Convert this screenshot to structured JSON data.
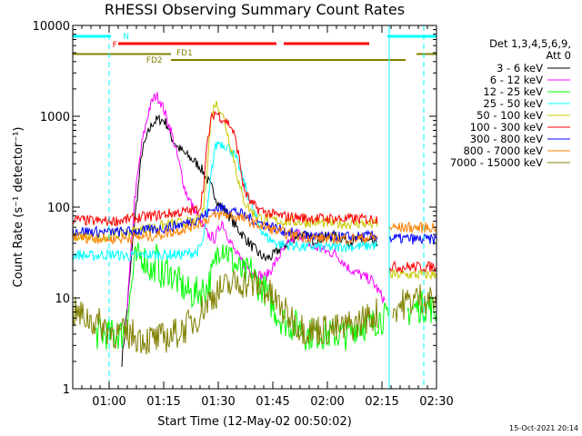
{
  "chart_data": {
    "type": "line",
    "title": "RHESSI Observing Summary Count Rates",
    "xlabel": "Start Time (12-May-02 00:50:02)",
    "ylabel": "Count Rate (s⁻¹ detector⁻¹)",
    "y_scale": "log",
    "ylim": [
      1,
      10000
    ],
    "xlim_minutes_after_start": [
      0,
      100
    ],
    "grid": false,
    "legend_placement": "right",
    "y_ticks": [
      "1",
      "10",
      "100",
      "1000",
      "10000"
    ],
    "x_ticks": [
      "01:00",
      "01:15",
      "01:30",
      "01:45",
      "02:00",
      "02:15",
      "02:30"
    ],
    "x_tick_minutes": [
      10,
      25,
      40,
      55,
      70,
      85,
      100
    ],
    "legend_header": [
      "Det 1,3,4,5,6,9,",
      "Att 0"
    ],
    "series": [
      {
        "name": "3 - 6 keV",
        "color": "#000000",
        "x": [
          0,
          10,
          12,
          13.5,
          15,
          17,
          19,
          21,
          22,
          23,
          24,
          25,
          26,
          27,
          29,
          31,
          33,
          35,
          37,
          39,
          40,
          41,
          43,
          45,
          47,
          49,
          51,
          53,
          55,
          57,
          60,
          62,
          64,
          66,
          68,
          70,
          72,
          74,
          76,
          78,
          80,
          82,
          84,
          86,
          87,
          88,
          89
        ],
        "y": [
          null,
          null,
          null,
          2,
          8,
          70,
          400,
          700,
          850,
          900,
          920,
          900,
          800,
          600,
          450,
          380,
          330,
          280,
          200,
          140,
          110,
          100,
          80,
          60,
          48,
          38,
          31,
          27,
          29,
          35,
          43,
          50,
          48,
          44,
          45,
          47,
          48,
          46,
          42,
          44,
          43,
          40,
          42,
          null,
          null,
          null,
          null
        ]
      },
      {
        "name": "6 - 12 keV",
        "color": "#ff00ff",
        "x": [
          0,
          10,
          12,
          13.5,
          15,
          17,
          19,
          21,
          22,
          23,
          24,
          25,
          26,
          27,
          29,
          31,
          33,
          35,
          37,
          39,
          40,
          41,
          43,
          45,
          47,
          49,
          51,
          53,
          55,
          57,
          60,
          62,
          64,
          66,
          68,
          70,
          72,
          74,
          76,
          78,
          80,
          82,
          84,
          86,
          87,
          88,
          89
        ],
        "y": [
          null,
          null,
          null,
          null,
          8,
          120,
          500,
          1200,
          1500,
          1700,
          1500,
          1200,
          900,
          700,
          330,
          150,
          100,
          70,
          50,
          45,
          55,
          70,
          45,
          30,
          24,
          20,
          18,
          17,
          22,
          30,
          42,
          52,
          44,
          36,
          35,
          32,
          31,
          26,
          21,
          19,
          17,
          16,
          12,
          9,
          null,
          null,
          null
        ]
      },
      {
        "name": "12 - 25 keV",
        "color": "#00ff00",
        "x": [
          0,
          6,
          10,
          12,
          13.5,
          15,
          17,
          19,
          21,
          22,
          23,
          24,
          25,
          26,
          27,
          29,
          31,
          33,
          35,
          37,
          39,
          40,
          41,
          43,
          45,
          47,
          49,
          51,
          53,
          55,
          57,
          60,
          62,
          64,
          66,
          68,
          70,
          72,
          74,
          76,
          78,
          80,
          82,
          84,
          86,
          87,
          88,
          89,
          92,
          95,
          98,
          100
        ],
        "y": [
          null,
          4,
          4,
          4,
          4,
          6,
          25,
          30,
          22,
          18,
          28,
          20,
          16,
          22,
          18,
          15,
          12,
          11,
          12,
          13,
          22,
          35,
          40,
          30,
          22,
          18,
          20,
          14,
          12,
          8,
          6,
          5,
          5,
          4,
          4,
          4,
          4,
          4,
          4,
          4,
          5,
          5,
          5,
          6,
          6,
          5,
          null,
          null,
          7,
          8,
          8,
          7
        ]
      },
      {
        "name": "25 - 50 keV",
        "color": "#00ffff",
        "x": [
          0,
          2,
          4,
          6,
          8,
          10,
          12,
          14,
          16,
          18,
          20,
          22,
          24,
          26,
          28,
          30,
          32,
          34,
          35,
          36,
          37,
          38,
          39,
          40,
          41,
          42,
          43,
          44,
          45,
          46,
          47,
          49,
          51,
          53,
          55,
          57,
          60,
          62,
          64,
          66,
          68,
          70,
          72,
          74,
          76,
          78,
          80,
          82,
          84,
          86,
          87,
          88,
          89,
          92,
          95,
          98,
          100
        ],
        "y": [
          30,
          30,
          29,
          29,
          30,
          30,
          30,
          29,
          29,
          29,
          30,
          30,
          30,
          30,
          30,
          30,
          31,
          32,
          35,
          45,
          90,
          220,
          430,
          520,
          500,
          480,
          450,
          400,
          330,
          260,
          190,
          110,
          65,
          48,
          42,
          39,
          38,
          37,
          36,
          37,
          36,
          36,
          36,
          37,
          37,
          37,
          37,
          38,
          37,
          null,
          null,
          null,
          null,
          null,
          null,
          null,
          null
        ]
      },
      {
        "name": "50 - 100 keV",
        "color": "#c8c800",
        "x": [
          0,
          2,
          4,
          6,
          8,
          10,
          12,
          14,
          16,
          18,
          20,
          22,
          24,
          26,
          28,
          30,
          32,
          34,
          35,
          36,
          37,
          38,
          39,
          40,
          41,
          42,
          43,
          44,
          45,
          46,
          47,
          49,
          51,
          53,
          55,
          57,
          60,
          62,
          64,
          66,
          68,
          70,
          72,
          74,
          76,
          78,
          80,
          82,
          84,
          86,
          87,
          88,
          89,
          92,
          95,
          98,
          100
        ],
        "y": [
          47,
          47,
          46,
          46,
          47,
          48,
          50,
          52,
          53,
          55,
          58,
          60,
          62,
          64,
          66,
          67,
          68,
          70,
          75,
          100,
          300,
          900,
          1400,
          1300,
          1100,
          800,
          550,
          380,
          250,
          160,
          120,
          90,
          78,
          74,
          72,
          70,
          69,
          69,
          68,
          68,
          67,
          67,
          66,
          66,
          66,
          66,
          66,
          65,
          65,
          null,
          18,
          18,
          18,
          18,
          18,
          18,
          18
        ]
      },
      {
        "name": "100 - 300 keV",
        "color": "#ff0000",
        "x": [
          0,
          2,
          4,
          6,
          8,
          10,
          12,
          14,
          16,
          18,
          20,
          22,
          24,
          26,
          28,
          30,
          32,
          34,
          35,
          36,
          37,
          38,
          39,
          40,
          41,
          42,
          43,
          44,
          45,
          46,
          47,
          49,
          51,
          53,
          55,
          57,
          60,
          62,
          64,
          66,
          68,
          70,
          72,
          74,
          76,
          78,
          80,
          82,
          84,
          86,
          87,
          88,
          89,
          92,
          95,
          98,
          100
        ],
        "y": [
          72,
          72,
          71,
          70,
          70,
          70,
          71,
          72,
          74,
          76,
          78,
          80,
          82,
          84,
          86,
          88,
          90,
          93,
          100,
          180,
          500,
          900,
          1100,
          1050,
          950,
          900,
          820,
          700,
          500,
          300,
          160,
          110,
          95,
          88,
          83,
          80,
          78,
          77,
          76,
          76,
          75,
          75,
          75,
          74,
          74,
          74,
          74,
          74,
          74,
          null,
          22,
          22,
          22,
          22,
          22,
          22,
          22
        ]
      },
      {
        "name": "300 - 800 keV",
        "color": "#0000ff",
        "x": [
          0,
          4,
          8,
          12,
          16,
          20,
          24,
          28,
          32,
          36,
          38,
          40,
          42,
          44,
          46,
          48,
          50,
          54,
          58,
          62,
          66,
          70,
          74,
          78,
          82,
          84,
          86,
          87,
          88,
          89,
          92,
          95,
          98,
          100
        ],
        "y": [
          55,
          54,
          53,
          53,
          54,
          55,
          58,
          62,
          68,
          80,
          92,
          98,
          97,
          92,
          85,
          78,
          70,
          62,
          55,
          50,
          48,
          47,
          47,
          47,
          48,
          48,
          null,
          45,
          45,
          45,
          45,
          44,
          44,
          44
        ]
      },
      {
        "name": "800 - 7000 keV",
        "color": "#ff8000",
        "x": [
          0,
          4,
          8,
          12,
          16,
          20,
          24,
          28,
          32,
          36,
          38,
          40,
          42,
          44,
          46,
          48,
          50,
          54,
          58,
          62,
          66,
          70,
          74,
          78,
          82,
          84,
          86,
          87,
          88,
          89,
          92,
          95,
          98,
          100
        ],
        "y": [
          47,
          46,
          45,
          45,
          46,
          47,
          50,
          54,
          60,
          70,
          78,
          82,
          82,
          80,
          76,
          72,
          66,
          58,
          52,
          48,
          46,
          45,
          45,
          45,
          46,
          46,
          null,
          60,
          60,
          59,
          60,
          59,
          60,
          60
        ]
      },
      {
        "name": "7000 - 15000 keV",
        "color": "#808000",
        "x": [
          0,
          4,
          8,
          12,
          16,
          20,
          24,
          28,
          32,
          34,
          36,
          38,
          40,
          42,
          44,
          46,
          48,
          50,
          52,
          54,
          56,
          58,
          60,
          62,
          64,
          66,
          68,
          70,
          72,
          74,
          76,
          78,
          80,
          82,
          84,
          86,
          87,
          88,
          89,
          92,
          95,
          98,
          100
        ],
        "y": [
          7,
          6,
          5,
          4,
          4,
          3.5,
          3.5,
          4,
          5,
          6,
          8,
          10,
          12,
          13,
          14,
          15,
          14.5,
          14,
          13,
          11,
          9,
          7,
          6,
          5,
          4.5,
          4.5,
          4.5,
          4.5,
          4.5,
          4.5,
          5,
          5,
          6,
          6,
          7,
          null,
          null,
          7,
          8,
          9,
          10,
          10,
          9
        ]
      }
    ],
    "flag_bars": [
      {
        "label": "N",
        "color": "#00ffff"
      },
      {
        "label": "F",
        "color": "#ff0000"
      },
      {
        "label": "FD1",
        "color": "#808000"
      },
      {
        "label": "FD2",
        "color": "#808000"
      }
    ],
    "attenuator_markers_color": "#00ffff"
  },
  "footer": {
    "timestamp": "15-Oct-2021 20:14"
  }
}
